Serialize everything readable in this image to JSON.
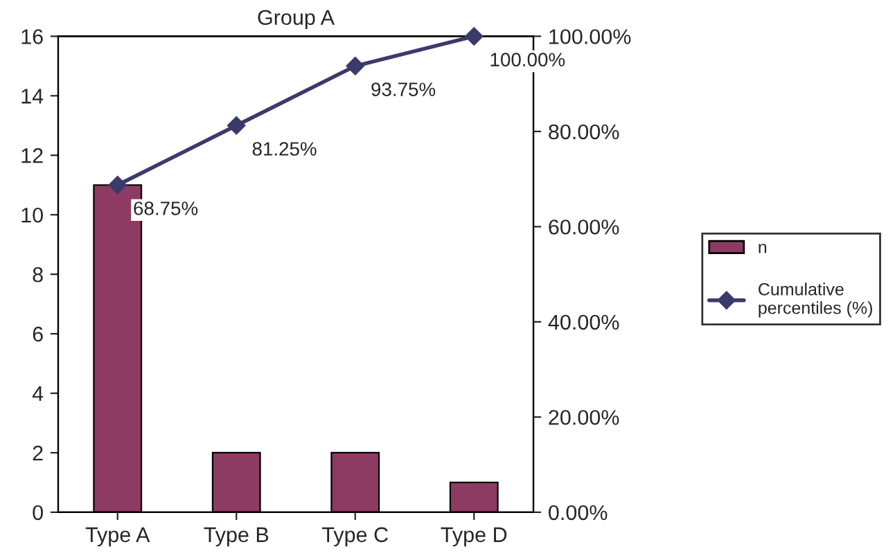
{
  "chart_data": {
    "type": "bar",
    "title": "Group A",
    "categories": [
      "Type A",
      "Type B",
      "Type C",
      "Type D"
    ],
    "series": [
      {
        "name": "n",
        "color": "#8e3b63",
        "values": [
          11,
          2,
          2,
          1
        ]
      },
      {
        "name": "Cumulative\npercentiles (%)",
        "type": "line",
        "axis": "y2",
        "color": "#3c3a6b",
        "values": [
          68.75,
          81.25,
          93.75,
          100
        ],
        "value_labels": [
          "68.75%",
          "81.25%",
          "93.75%",
          "100.00%"
        ]
      }
    ],
    "ylim": [
      0,
      16
    ],
    "yticks": [
      0,
      2,
      4,
      6,
      8,
      10,
      12,
      14,
      16
    ],
    "y2lim": [
      0,
      100
    ],
    "y2ticks": [
      {
        "value": 0,
        "label": "0.00%"
      },
      {
        "value": 20,
        "label": "20.00%"
      },
      {
        "value": 40,
        "label": "40.00%"
      },
      {
        "value": 60,
        "label": "60.00%"
      },
      {
        "value": 80,
        "label": "80.00%"
      },
      {
        "value": 100,
        "label": "100.00%"
      }
    ],
    "marker": "diamond",
    "grid": false,
    "legend": "right"
  }
}
